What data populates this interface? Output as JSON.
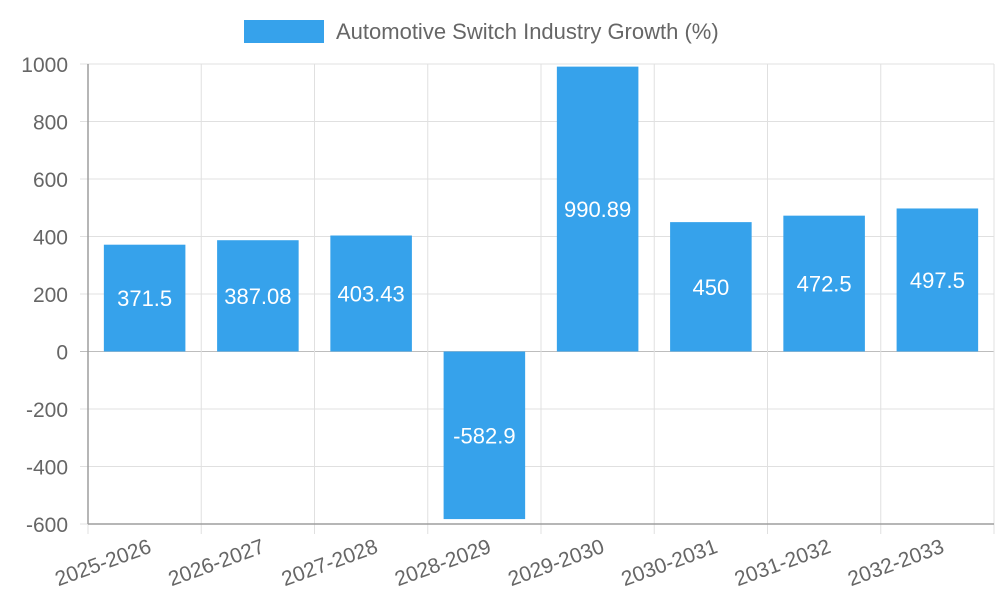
{
  "chart_data": {
    "type": "bar",
    "categories": [
      "2025-2026",
      "2026-2027",
      "2027-2028",
      "2028-2029",
      "2029-2030",
      "2030-2031",
      "2031-2032",
      "2032-2033"
    ],
    "series": [
      {
        "name": "Automotive Switch Industry Growth (%)",
        "values": [
          371.5,
          387.08,
          403.43,
          -582.9,
          990.89,
          450,
          472.5,
          497.5
        ],
        "color": "#36a2eb"
      }
    ],
    "value_labels": [
      "371.5",
      "387.08",
      "403.43",
      "-582.9",
      "990.89",
      "450",
      "472.5",
      "497.5"
    ],
    "ylim": [
      -600,
      1000
    ],
    "y_ticks": [
      "-600",
      "-400",
      "-200",
      "0",
      "200",
      "400",
      "600",
      "800",
      "1000"
    ],
    "grid": true,
    "legend_position": "top"
  }
}
